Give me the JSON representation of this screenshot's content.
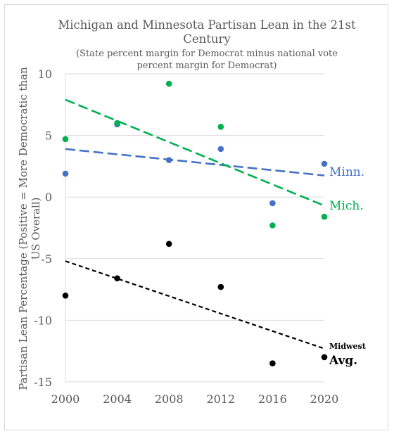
{
  "chart_data": {
    "type": "scatter",
    "title_lines": [
      "Michigan and Minnesota Partisan Lean in the 21st",
      "Century"
    ],
    "subtitle_lines": [
      "(State percent margin for Democrat minus national vote",
      "percent margin for Democrat)"
    ],
    "ylabel_lines": [
      "Partisan Lean Percentage (Positive = More Democratic than",
      "US Overall)"
    ],
    "xlabel": "",
    "x": [
      2000,
      2004,
      2008,
      2012,
      2016,
      2020
    ],
    "x_tick_labels": [
      "2000",
      "2004",
      "2008",
      "2012",
      "2016",
      "2020"
    ],
    "y_ticks": [
      10,
      5,
      0,
      -5,
      -10,
      -15
    ],
    "y_tick_labels": [
      "10",
      "5",
      "0",
      "-5",
      "-10",
      "-15"
    ],
    "xlim": [
      2000,
      2020
    ],
    "ylim": [
      -15,
      10
    ],
    "grid": "horizontal",
    "series": [
      {
        "key": "minnesota",
        "values": [
          1.9,
          5.9,
          3.0,
          3.9,
          -0.5,
          2.7
        ],
        "trend": [
          3.9,
          1.75
        ],
        "color": "#4472c4",
        "label_lines": [
          "Minn."
        ]
      },
      {
        "key": "michigan",
        "values": [
          4.7,
          6.0,
          9.2,
          5.7,
          -2.3,
          -1.6
        ],
        "trend": [
          7.9,
          -0.7
        ],
        "color": "#00b050",
        "label_lines": [
          "Mich."
        ]
      },
      {
        "key": "midwest",
        "values": [
          -8.0,
          -6.6,
          -3.8,
          -7.3,
          -13.5,
          -13.0
        ],
        "trend": [
          -5.2,
          -12.3
        ],
        "color": "#000000",
        "label_lines": [
          "Midwest",
          "Avg."
        ]
      }
    ]
  }
}
